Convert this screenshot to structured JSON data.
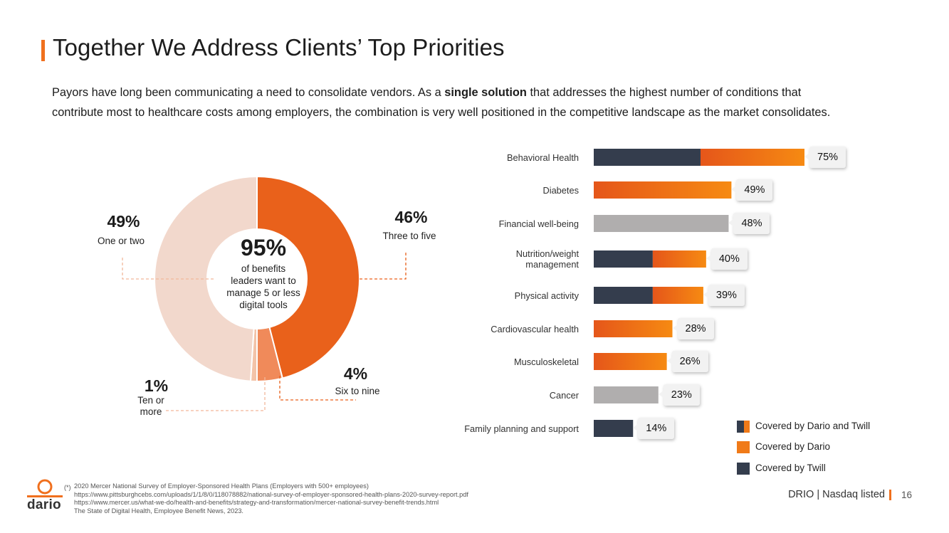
{
  "title": "Together We Address Clients’ Top Priorities",
  "intro": {
    "part1": "Payors have long been communicating a need to consolidate vendors. As a ",
    "bold": "single solution",
    "part2": " that addresses the highest number of conditions that contribute most to healthcare costs among employers, the combination is very well positioned in the competitive landscape as the market consolidates."
  },
  "chart_data": [
    {
      "type": "pie",
      "title": "",
      "center_value": "95%",
      "center_text": "of benefits leaders want to manage 5 or less digital tools",
      "slices": [
        {
          "label": "Three to five",
          "display": "46%",
          "value": 46,
          "color": "#e9611b"
        },
        {
          "label": "Six to nine",
          "display": "4%",
          "value": 4,
          "color": "#f08a5a"
        },
        {
          "label": "Ten or more",
          "display": "1%",
          "value": 1,
          "color": "#f3c3a8"
        },
        {
          "label": "One or two",
          "display": "49%",
          "value": 49,
          "color": "#f2d8cc"
        }
      ]
    },
    {
      "type": "bar",
      "orientation": "horizontal",
      "categories": [
        "Behavioral Health",
        "Diabetes",
        "Financial well-being",
        "Nutrition/weight management",
        "Physical activity",
        "Cardiovascular health",
        "Musculoskeletal",
        "Cancer",
        "Family planning and support"
      ],
      "values": [
        75,
        49,
        48,
        40,
        39,
        28,
        26,
        23,
        14
      ],
      "value_labels": [
        "75%",
        "49%",
        "48%",
        "40%",
        "39%",
        "28%",
        "26%",
        "23%",
        "14%"
      ],
      "coverage": [
        "both",
        "dario",
        "none",
        "both",
        "both",
        "dario",
        "dario",
        "none",
        "twill"
      ],
      "twill_part": [
        38,
        0,
        0,
        21,
        21,
        0,
        0,
        0,
        14
      ],
      "xlim": [
        0,
        75
      ]
    }
  ],
  "legend": [
    {
      "label": "Covered by Dario and Twill",
      "key": "both"
    },
    {
      "label": "Covered by Dario",
      "key": "dario"
    },
    {
      "label": "Covered by Twill",
      "key": "twill"
    }
  ],
  "colors": {
    "accent": "#f0701e",
    "dario_start": "#e5561a",
    "dario_end": "#f68a12",
    "twill": "#343d4d",
    "gray": "#b0aeae"
  },
  "footer": {
    "star": "(*)",
    "notes": [
      "2020 Mercer National Survey of Employer-Sponsored Health Plans (Employers with 500+ employees)",
      "https://www.pittsburghcebs.com/uploads/1/1/8/0/118078882/national-survey-of-employer-sponsored-health-plans-2020-survey-report.pdf",
      "https://www.mercer.us/what-we-do/health-and-benefits/strategy-and-transformation/mercer-national-survey-benefit-trends.html",
      "The State of Digital Health, Employee Benefit News, 2023."
    ],
    "logo_text": "dario",
    "ticker": "DRIO | Nasdaq listed",
    "page": "16"
  }
}
